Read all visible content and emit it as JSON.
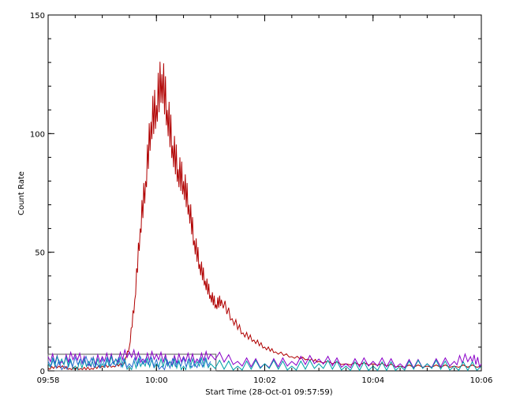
{
  "chart_data": {
    "type": "line",
    "title": "",
    "xlabel": "Start Time (28-Oct-01 09:57:59)",
    "ylabel": "Count Rate",
    "x_unit": "minutes",
    "xlim": [
      0,
      8
    ],
    "ylim": [
      0,
      150
    ],
    "x_ticks": [
      {
        "value": 0,
        "label": "09:58"
      },
      {
        "value": 2,
        "label": "10:00"
      },
      {
        "value": 4,
        "label": "10:02"
      },
      {
        "value": 6,
        "label": "10:04"
      },
      {
        "value": 8,
        "label": "10:06"
      }
    ],
    "y_ticks": [
      {
        "value": 0,
        "label": "0"
      },
      {
        "value": 50,
        "label": "50"
      },
      {
        "value": 100,
        "label": "100"
      },
      {
        "value": 150,
        "label": "150"
      }
    ],
    "grid": false,
    "legend": "none",
    "box_region": {
      "x": [
        0,
        3.1
      ],
      "y": [
        0,
        7
      ]
    },
    "series": [
      {
        "color": "#b00000",
        "x": [
          0,
          0.2,
          0.4,
          0.6,
          0.8,
          1.0,
          1.2,
          1.4,
          1.5,
          1.6,
          1.7,
          1.8,
          1.9,
          2.0,
          2.1,
          2.2,
          2.3,
          2.4,
          2.5,
          2.6,
          2.7,
          2.8,
          2.9,
          3.0,
          3.1,
          3.2,
          3.4,
          3.6,
          3.8,
          4.0,
          4.2,
          4.5,
          4.8,
          5.0,
          5.5,
          6.0,
          6.5,
          7.0,
          7.5,
          8.0
        ],
        "y": [
          1,
          2,
          1,
          1,
          1,
          2,
          2,
          3,
          10,
          30,
          60,
          80,
          105,
          112,
          125,
          110,
          95,
          85,
          80,
          70,
          55,
          45,
          38,
          32,
          28,
          30,
          22,
          16,
          13,
          10,
          8,
          6,
          5,
          4,
          3,
          3,
          2,
          2,
          2,
          2
        ]
      },
      {
        "color": "#8a00c8",
        "x": [
          0,
          0.25,
          0.5,
          0.75,
          1.0,
          1.25,
          1.5,
          1.75,
          2.0,
          2.25,
          2.5,
          2.75,
          3.0,
          3.5,
          4.0,
          4.5,
          5.0,
          5.5,
          6.0,
          6.5,
          7.0,
          7.5,
          7.8,
          8.0
        ],
        "y": [
          6,
          4,
          7,
          3,
          6,
          5,
          8,
          5,
          7,
          4,
          6,
          5,
          7,
          4,
          3,
          4,
          5,
          3,
          4,
          3,
          3,
          4,
          6,
          3
        ]
      },
      {
        "color": "#00a0a8",
        "x": [
          0,
          0.25,
          0.5,
          0.75,
          1.0,
          1.25,
          1.5,
          1.75,
          2.0,
          2.25,
          2.5,
          2.75,
          3.0,
          3.5,
          4.0,
          4.5,
          5.0,
          5.5,
          6.0,
          6.5,
          7.0,
          7.5,
          8.0
        ],
        "y": [
          3,
          5,
          2,
          4,
          3,
          5,
          2,
          4,
          3,
          4,
          2,
          4,
          3,
          2,
          3,
          2,
          3,
          2,
          2,
          2,
          3,
          2,
          2
        ]
      },
      {
        "color": "#2a6ad0",
        "x": [
          0,
          0.3,
          0.6,
          0.9,
          1.2,
          1.5,
          1.8,
          2.1,
          2.4,
          2.7,
          3.0
        ],
        "y": [
          4,
          2,
          5,
          3,
          4,
          3,
          5,
          2,
          4,
          3,
          4
        ]
      }
    ]
  }
}
